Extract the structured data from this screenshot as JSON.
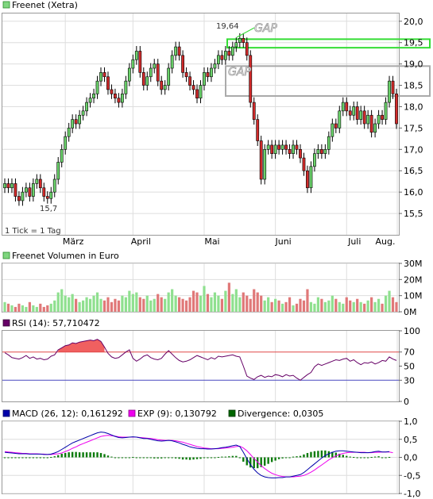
{
  "chart_data": [
    {
      "type": "candlestick",
      "legend_label": "Freenet (Xetra)",
      "legend_color": "#7fd67f",
      "note": "1 Tick = 1 Tag",
      "x_ticks": [
        "März",
        "April",
        "Mai",
        "Juni",
        "Juli",
        "Aug."
      ],
      "y_ticks": [
        "20,0",
        "19,5",
        "19,0",
        "18,5",
        "18,0",
        "17,5",
        "17,0",
        "16,5",
        "16,0",
        "15,5"
      ],
      "ylim": [
        15.0,
        20.2
      ],
      "annotations": {
        "high_label": "19,64",
        "low_label": "15,7",
        "gap_label_1": "GAP",
        "gap_label_2": "GAP"
      },
      "gap_zones": [
        {
          "from": 19.38,
          "to": 19.58,
          "color": "#33dd33"
        },
        {
          "from": 18.25,
          "to": 18.95,
          "color": "#aaaaaa"
        }
      ],
      "closes": [
        16.2,
        16.1,
        16.2,
        15.9,
        15.8,
        16.0,
        16.1,
        15.9,
        16.2,
        16.3,
        16.1,
        15.9,
        15.85,
        16.0,
        16.3,
        16.7,
        17.0,
        17.3,
        17.5,
        17.7,
        17.6,
        17.8,
        17.9,
        18.1,
        18.2,
        18.3,
        18.6,
        18.8,
        18.7,
        18.4,
        18.3,
        18.2,
        18.1,
        18.3,
        18.6,
        18.9,
        19.1,
        19.3,
        18.8,
        18.5,
        18.7,
        18.9,
        19.0,
        18.6,
        18.4,
        18.5,
        18.9,
        19.2,
        19.4,
        19.2,
        18.8,
        18.7,
        18.5,
        18.4,
        18.2,
        18.5,
        18.8,
        18.7,
        18.9,
        19.0,
        19.2,
        19.1,
        19.3,
        19.2,
        19.4,
        19.5,
        19.6,
        19.5,
        19.2,
        18.1,
        17.7,
        17.2,
        16.3,
        17.0,
        17.1,
        16.9,
        17.1,
        17.0,
        17.1,
        17.0,
        16.9,
        17.1,
        17.0,
        16.8,
        16.5,
        16.1,
        16.6,
        16.9,
        17.0,
        16.9,
        17.0,
        17.3,
        17.6,
        17.5,
        17.9,
        18.1,
        17.9,
        17.8,
        18.0,
        17.7,
        17.9,
        17.6,
        17.8,
        17.4,
        17.6,
        17.8,
        17.7,
        18.1,
        18.6,
        18.3,
        17.6
      ],
      "price_path_note": "",
      "xlim_index": [
        0,
        110
      ]
    },
    {
      "type": "bar",
      "legend_label": "Freenet Volumen in Euro",
      "legend_color": "#7fd67f",
      "y_ticks": [
        "30M",
        "20M",
        "10M",
        "0M"
      ],
      "ylim": [
        0,
        30
      ],
      "values": [
        6,
        5,
        4,
        3,
        5,
        4,
        3,
        6,
        4,
        3,
        5,
        3,
        4,
        5,
        7,
        12,
        14,
        10,
        9,
        11,
        8,
        6,
        7,
        9,
        8,
        10,
        12,
        8,
        7,
        9,
        6,
        8,
        7,
        10,
        9,
        13,
        11,
        12,
        9,
        8,
        10,
        7,
        8,
        11,
        9,
        8,
        12,
        14,
        10,
        9,
        8,
        7,
        9,
        13,
        12,
        10,
        16,
        11,
        9,
        12,
        10,
        8,
        13,
        18,
        11,
        14,
        9,
        12,
        10,
        8,
        14,
        12,
        10,
        7,
        9,
        6,
        8,
        7,
        5,
        6,
        9,
        4,
        5,
        8,
        7,
        14,
        6,
        5,
        9,
        8,
        6,
        7,
        10,
        8,
        6,
        5,
        9,
        7,
        6,
        8,
        6,
        5,
        7,
        9,
        6,
        8,
        5,
        10,
        13,
        9,
        6
      ]
    },
    {
      "type": "line",
      "legend_label": "RSI (14): 57,710472",
      "legend_color": "#660066",
      "y_ticks": [
        "100",
        "70",
        "50",
        "30",
        "0"
      ],
      "ylim": [
        0,
        100
      ],
      "upper": 70,
      "lower": 30,
      "values": [
        69,
        66,
        62,
        61,
        60,
        62,
        65,
        61,
        63,
        60,
        61,
        59,
        60,
        64,
        66,
        73,
        76,
        79,
        80,
        83,
        82,
        84,
        85,
        86,
        87,
        86,
        88,
        85,
        77,
        68,
        63,
        61,
        62,
        66,
        70,
        73,
        61,
        57,
        60,
        64,
        66,
        62,
        60,
        59,
        61,
        67,
        72,
        67,
        62,
        58,
        56,
        57,
        59,
        62,
        65,
        63,
        61,
        59,
        62,
        60,
        64,
        63,
        64,
        65,
        66,
        64,
        63,
        50,
        36,
        33,
        31,
        35,
        37,
        34,
        36,
        35,
        38,
        37,
        35,
        38,
        36,
        37,
        33,
        30,
        34,
        38,
        41,
        49,
        53,
        51,
        53,
        55,
        57,
        59,
        58,
        60,
        61,
        57,
        59,
        55,
        52,
        55,
        54,
        56,
        53,
        55,
        58,
        57,
        63,
        60,
        58
      ]
    },
    {
      "type": "line",
      "series_labels": {
        "macd": "MACD (26, 12): 0,161292",
        "signal": "EXP (9): 0,130792",
        "divergence": "Divergence: 0,0305"
      },
      "series_colors": {
        "macd": "#0000aa",
        "signal": "#ee00ee",
        "divergence": "#006600"
      },
      "y_ticks": [
        "1,0",
        "0,5",
        "0,0",
        "-0,5",
        "-1,0"
      ],
      "ylim": [
        -1.0,
        1.0
      ],
      "macd": [
        0.14,
        0.13,
        0.12,
        0.11,
        0.1,
        0.1,
        0.1,
        0.09,
        0.09,
        0.09,
        0.09,
        0.08,
        0.08,
        0.09,
        0.12,
        0.16,
        0.22,
        0.28,
        0.34,
        0.4,
        0.44,
        0.48,
        0.52,
        0.56,
        0.6,
        0.64,
        0.68,
        0.7,
        0.69,
        0.66,
        0.62,
        0.58,
        0.55,
        0.54,
        0.55,
        0.56,
        0.57,
        0.56,
        0.54,
        0.52,
        0.52,
        0.5,
        0.48,
        0.46,
        0.45,
        0.46,
        0.47,
        0.46,
        0.43,
        0.4,
        0.36,
        0.33,
        0.29,
        0.27,
        0.25,
        0.24,
        0.24,
        0.23,
        0.23,
        0.24,
        0.25,
        0.27,
        0.28,
        0.3,
        0.32,
        0.34,
        0.3,
        0.14,
        -0.04,
        -0.2,
        -0.33,
        -0.43,
        -0.5,
        -0.54,
        -0.56,
        -0.57,
        -0.57,
        -0.56,
        -0.56,
        -0.54,
        -0.54,
        -0.52,
        -0.5,
        -0.48,
        -0.42,
        -0.34,
        -0.26,
        -0.18,
        -0.1,
        -0.02,
        0.05,
        0.1,
        0.14,
        0.17,
        0.18,
        0.18,
        0.17,
        0.16,
        0.15,
        0.14,
        0.13,
        0.13,
        0.13,
        0.14,
        0.16,
        0.17,
        0.15,
        0.15,
        0.16
      ],
      "signal": [
        0.16,
        0.15,
        0.14,
        0.13,
        0.12,
        0.11,
        0.11,
        0.1,
        0.1,
        0.1,
        0.09,
        0.09,
        0.08,
        0.08,
        0.09,
        0.1,
        0.12,
        0.16,
        0.2,
        0.25,
        0.29,
        0.34,
        0.38,
        0.42,
        0.46,
        0.5,
        0.54,
        0.58,
        0.6,
        0.61,
        0.6,
        0.59,
        0.57,
        0.56,
        0.56,
        0.56,
        0.56,
        0.56,
        0.55,
        0.54,
        0.53,
        0.52,
        0.51,
        0.49,
        0.48,
        0.47,
        0.47,
        0.47,
        0.46,
        0.44,
        0.42,
        0.39,
        0.36,
        0.33,
        0.3,
        0.28,
        0.26,
        0.25,
        0.24,
        0.24,
        0.24,
        0.25,
        0.26,
        0.27,
        0.28,
        0.3,
        0.31,
        0.26,
        0.18,
        0.08,
        -0.03,
        -0.13,
        -0.23,
        -0.31,
        -0.38,
        -0.44,
        -0.48,
        -0.51,
        -0.53,
        -0.54,
        -0.54,
        -0.54,
        -0.53,
        -0.52,
        -0.5,
        -0.46,
        -0.41,
        -0.35,
        -0.28,
        -0.21,
        -0.14,
        -0.07,
        -0.01,
        0.04,
        0.08,
        0.11,
        0.13,
        0.14,
        0.14,
        0.14,
        0.14,
        0.14,
        0.13,
        0.13,
        0.14,
        0.14,
        0.15,
        0.15,
        0.15,
        0.13
      ]
    }
  ]
}
